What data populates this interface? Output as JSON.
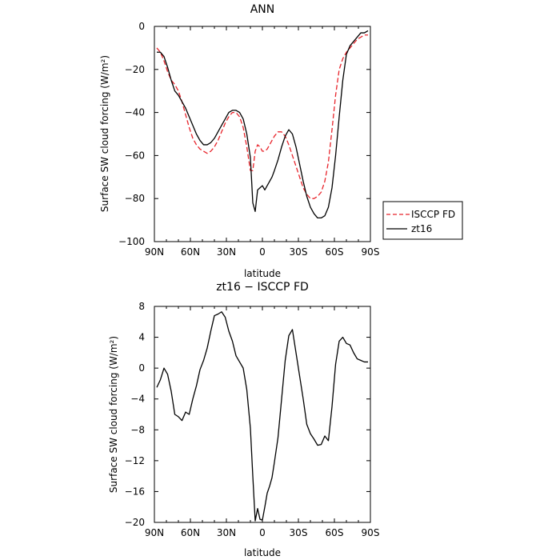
{
  "chart_data": [
    {
      "type": "line",
      "title": "ANN",
      "xlabel": "latitude",
      "ylabel": "Surface SW cloud forcing (W/m²)",
      "xlim": [
        90,
        -90
      ],
      "ylim": [
        -100,
        0
      ],
      "x_ticks": [
        90,
        60,
        30,
        0,
        -30,
        -60,
        -90
      ],
      "x_tick_labels": [
        "90N",
        "60N",
        "30N",
        "0",
        "30S",
        "60S",
        "90S"
      ],
      "y_ticks": [
        0,
        -20,
        -40,
        -60,
        -80,
        -100
      ],
      "y_tick_labels": [
        "0",
        "−20",
        "−40",
        "−60",
        "−80",
        "−100"
      ],
      "legend_position": "outside-right",
      "series": [
        {
          "name": "ISCCP FD",
          "color": "#e8232a",
          "dash": "dashed",
          "x": [
            88,
            85,
            82,
            79,
            76,
            73,
            70,
            67,
            64,
            61,
            58,
            55,
            52,
            49,
            46,
            43,
            40,
            37,
            34,
            31,
            28,
            25,
            22,
            19,
            16,
            13,
            10,
            8,
            6,
            4,
            2,
            0,
            -2,
            -4,
            -6,
            -8,
            -10,
            -13,
            -16,
            -19,
            -22,
            -25,
            -28,
            -31,
            -34,
            -37,
            -40,
            -43,
            -46,
            -49,
            -52,
            -55,
            -58,
            -61,
            -64,
            -67,
            -70,
            -73,
            -76,
            -79,
            -82,
            -85,
            -88
          ],
          "y": [
            -10,
            -12,
            -16,
            -21,
            -25,
            -27,
            -30,
            -35,
            -41,
            -47,
            -52,
            -55,
            -57,
            -58,
            -59,
            -58,
            -56,
            -53,
            -49,
            -45,
            -42,
            -40,
            -40,
            -42,
            -47,
            -56,
            -67,
            -67,
            -58,
            -55,
            -56,
            -58,
            -58,
            -57,
            -55,
            -53,
            -51,
            -49,
            -49,
            -51,
            -55,
            -60,
            -65,
            -70,
            -75,
            -78,
            -80,
            -80,
            -79,
            -77,
            -72,
            -63,
            -48,
            -32,
            -20,
            -15,
            -12,
            -10,
            -8,
            -6,
            -5,
            -4,
            -4
          ]
        },
        {
          "name": "zt16",
          "color": "#000000",
          "dash": "solid",
          "x": [
            88,
            85,
            82,
            79,
            76,
            73,
            70,
            67,
            64,
            61,
            58,
            55,
            52,
            49,
            46,
            43,
            40,
            37,
            34,
            31,
            28,
            25,
            22,
            19,
            16,
            13,
            10,
            8,
            6,
            4,
            2,
            0,
            -2,
            -4,
            -6,
            -8,
            -10,
            -13,
            -16,
            -19,
            -22,
            -25,
            -28,
            -31,
            -34,
            -37,
            -40,
            -43,
            -46,
            -49,
            -52,
            -55,
            -58,
            -61,
            -64,
            -67,
            -70,
            -73,
            -76,
            -79,
            -82,
            -85,
            -88
          ],
          "y": [
            -12,
            -12,
            -14,
            -19,
            -25,
            -30,
            -32,
            -35,
            -38,
            -42,
            -46,
            -50,
            -53,
            -55,
            -55,
            -54,
            -52,
            -49,
            -46,
            -43,
            -40,
            -39,
            -39,
            -40,
            -43,
            -50,
            -61,
            -82,
            -86,
            -76,
            -75,
            -74,
            -76,
            -74,
            -72,
            -70,
            -67,
            -62,
            -56,
            -51,
            -48,
            -50,
            -56,
            -64,
            -72,
            -79,
            -84,
            -87,
            -89,
            -89,
            -88,
            -84,
            -75,
            -60,
            -42,
            -25,
            -13,
            -9,
            -7,
            -5,
            -3,
            -3,
            -2
          ]
        }
      ]
    },
    {
      "type": "line",
      "title": "zt16 − ISCCP FD",
      "xlabel": "latitude",
      "ylabel": "Surface SW cloud forcing (W/m²)",
      "xlim": [
        90,
        -90
      ],
      "ylim": [
        -20,
        8
      ],
      "x_ticks": [
        90,
        60,
        30,
        0,
        -30,
        -60,
        -90
      ],
      "x_tick_labels": [
        "90N",
        "60N",
        "30N",
        "0",
        "30S",
        "60S",
        "90S"
      ],
      "y_ticks": [
        8,
        4,
        0,
        -4,
        -8,
        -12,
        -16,
        -20
      ],
      "y_tick_labels": [
        "8",
        "4",
        "0",
        "−4",
        "−8",
        "−12",
        "−16",
        "−20"
      ],
      "series": [
        {
          "color": "#000000",
          "dash": "solid",
          "x": [
            88,
            85,
            82,
            79,
            76,
            73,
            70,
            67,
            64,
            61,
            58,
            55,
            52,
            49,
            46,
            43,
            40,
            37,
            34,
            31,
            28,
            25,
            22,
            19,
            16,
            13,
            10,
            8,
            6,
            4,
            2,
            0,
            -2,
            -4,
            -6,
            -8,
            -10,
            -13,
            -16,
            -19,
            -22,
            -25,
            -28,
            -31,
            -34,
            -37,
            -40,
            -43,
            -46,
            -49,
            -52,
            -55,
            -58,
            -61,
            -64,
            -67,
            -70,
            -73,
            -76,
            -79,
            -82,
            -85,
            -88
          ],
          "y": [
            -2.5,
            -1.5,
            0,
            -0.8,
            -3,
            -6,
            -6.3,
            -6.8,
            -5.7,
            -6,
            -4,
            -2.3,
            -0.2,
            1,
            2.6,
            4.8,
            6.8,
            7,
            7.3,
            6.6,
            4.8,
            3.5,
            1.6,
            0.8,
            0,
            -2.8,
            -7.8,
            -14,
            -19.8,
            -18.2,
            -19.6,
            -19.7,
            -18,
            -16.2,
            -15.3,
            -14.2,
            -12.2,
            -9,
            -4,
            1,
            4.2,
            5,
            2,
            -1,
            -4,
            -7.3,
            -8.5,
            -9.2,
            -10,
            -9.9,
            -8.8,
            -9.4,
            -5,
            0.5,
            3.5,
            4,
            3.2,
            3,
            2,
            1.2,
            1,
            0.8,
            0.8
          ]
        }
      ]
    }
  ]
}
